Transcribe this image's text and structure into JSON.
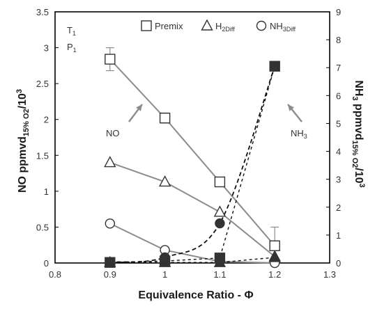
{
  "chart_data": {
    "type": "line",
    "xlabel": "Equivalence Ratio - Φ",
    "ylabel_left": {
      "main": "NO ppmvd",
      "sub": "15% O2",
      "tail": "/10",
      "sup": "3"
    },
    "ylabel_right": {
      "main": "NH",
      "sub1": "3",
      "mid": " ppmvd",
      "sub2": "15% O2",
      "tail": "/10",
      "sup": "3"
    },
    "xlim": [
      0.8,
      1.3
    ],
    "ylim_left": [
      0,
      3.5
    ],
    "ylim_right": [
      0,
      9
    ],
    "x_ticks": [
      "0.8",
      "0.9",
      "1",
      "1.1",
      "1.2",
      "1.3"
    ],
    "y_left_ticks": [
      "0",
      "0.5",
      "1",
      "1.5",
      "2",
      "2.5",
      "3",
      "3.5"
    ],
    "y_right_ticks": [
      "0",
      "1",
      "2",
      "3",
      "4",
      "5",
      "6",
      "7",
      "8",
      "9"
    ],
    "grid": false,
    "legend_position": "top",
    "legend": [
      {
        "marker": "square",
        "label": "Premix"
      },
      {
        "marker": "triangle",
        "label": "H",
        "sub": "2Diff"
      },
      {
        "marker": "circle",
        "label": "NH",
        "sub": "3Diff"
      }
    ],
    "annotations": {
      "t1": "T",
      "t1_sub": "1",
      "p1": "P",
      "p1_sub": "1",
      "no": "NO",
      "nh3": "NH",
      "nh3_sub": "3"
    },
    "x": [
      0.9,
      1.0,
      1.1,
      1.2
    ],
    "series": [
      {
        "name": "Premix",
        "axis": "left",
        "species": "NO",
        "marker": "square",
        "line": "solid",
        "values": [
          2.84,
          2.02,
          1.13,
          0.24
        ],
        "error": [
          0.16,
          0.07,
          0,
          0.26
        ]
      },
      {
        "name": "H2Diff",
        "axis": "left",
        "species": "NO",
        "marker": "triangle",
        "line": "solid",
        "values": [
          1.4,
          1.13,
          0.71,
          0.09
        ]
      },
      {
        "name": "NH3Diff",
        "axis": "left",
        "species": "NO",
        "marker": "circle",
        "line": "solid",
        "values": [
          0.55,
          0.18,
          0.02,
          0.0
        ]
      },
      {
        "name": "Premix",
        "axis": "right",
        "species": "NH3",
        "marker": "square",
        "filled": true,
        "line": "dashed",
        "values": [
          0.02,
          0.07,
          0.18,
          7.05
        ]
      },
      {
        "name": "H2Diff",
        "axis": "right",
        "species": "NH3",
        "marker": "triangle",
        "filled": true,
        "line": "dashed",
        "values": [
          0.02,
          0.02,
          0.02,
          0.2
        ]
      },
      {
        "name": "NH3Diff",
        "axis": "right",
        "species": "NH3",
        "marker": "circle",
        "filled": true,
        "line": "dashed",
        "values": [
          0.03,
          0.2,
          1.42,
          7.05
        ]
      }
    ],
    "colors": {
      "line": "#8c8c8c",
      "marker": "#333333",
      "dashed": "#111111",
      "arrow": "#8c8c8c"
    }
  }
}
